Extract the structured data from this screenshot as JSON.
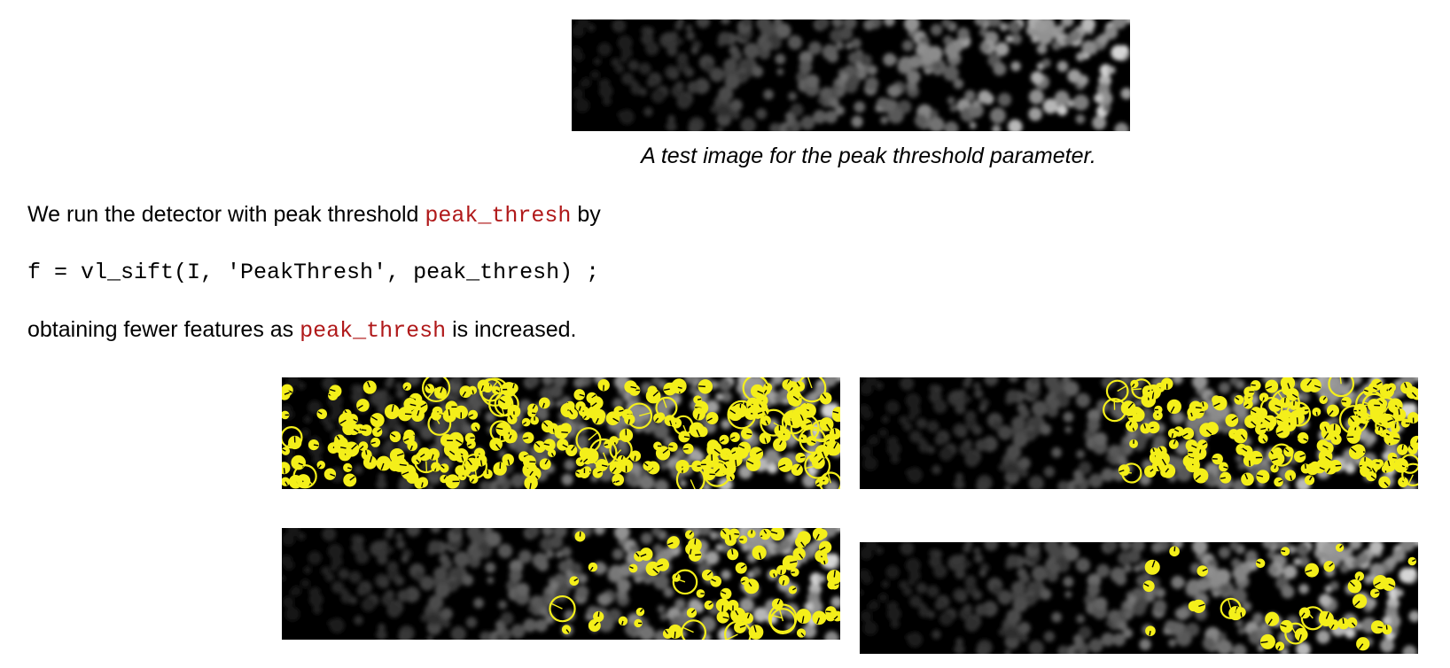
{
  "caption": "A test image for the peak threshold parameter.",
  "intro": {
    "before": "We run the detector with peak threshold ",
    "code": "peak_thresh",
    "after": " by"
  },
  "code_line": "f = vl_sift(I, 'PeakThresh', peak_thresh) ;",
  "outro": {
    "before": "obtaining fewer features as ",
    "code": "peak_thresh",
    "after": " is increased."
  },
  "colors": {
    "feature": "#f4ef1a",
    "code": "#b0191a",
    "figure_bg": "#000000"
  },
  "figures": [
    {
      "name": "test-image",
      "features": 0
    },
    {
      "name": "result-1",
      "features": 300
    },
    {
      "name": "result-2",
      "features": 190
    },
    {
      "name": "result-3",
      "features": 80
    },
    {
      "name": "result-4",
      "features": 38
    }
  ]
}
